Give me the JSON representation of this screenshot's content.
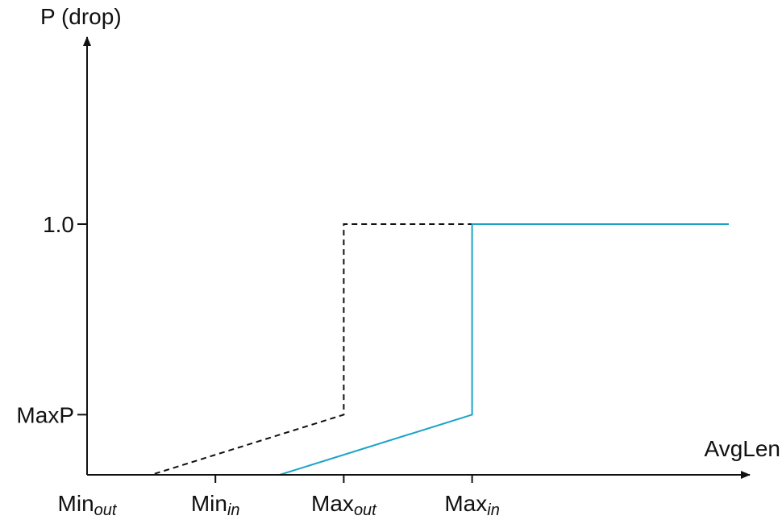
{
  "chart_data": {
    "type": "line",
    "ylabel": "P (drop)",
    "xlabel": "AvgLen",
    "y_ticks": [
      {
        "label": "1.0",
        "value": 1.0
      },
      {
        "label": "MaxP",
        "value": 0.24
      }
    ],
    "x_ticks": [
      {
        "base": "Min",
        "sub": "out",
        "value": 0
      },
      {
        "base": "Min",
        "sub": "in",
        "value": 0.5
      },
      {
        "base": "Max",
        "sub": "out",
        "value": 1.0
      },
      {
        "base": "Max",
        "sub": "in",
        "value": 1.5
      }
    ],
    "xlim": [
      0,
      2.6
    ],
    "ylim": [
      0,
      1.7
    ],
    "series": [
      {
        "style": "dashed",
        "color": "#111111",
        "points": [
          [
            0,
            0
          ],
          [
            0.25,
            0
          ],
          [
            1.0,
            0.24
          ],
          [
            1.0,
            1.0
          ],
          [
            2.5,
            1.0
          ]
        ]
      },
      {
        "style": "solid",
        "color": "#1aa3c6",
        "points": [
          [
            0.5,
            0
          ],
          [
            0.75,
            0
          ],
          [
            1.5,
            0.24
          ],
          [
            1.5,
            1.0
          ],
          [
            2.5,
            1.0
          ]
        ]
      }
    ]
  }
}
